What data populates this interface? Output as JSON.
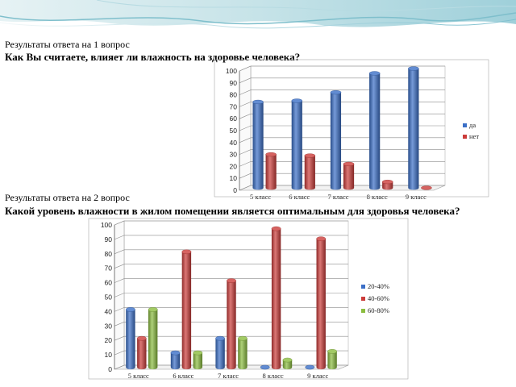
{
  "slide": {
    "q1_label": "Результаты ответа на 1 вопрос",
    "q1_question": "Как Вы считаете, влияет ли влажность на здоровье человека?",
    "q2_label": "Результаты ответа на 2 вопрос",
    "q2_question": "Какой уровень влажности в жилом помещении является оптимальным для здоровья человека?"
  },
  "chart_data": [
    {
      "type": "bar",
      "style": "3d-cylinder",
      "categories": [
        "5 класс",
        "6 класс",
        "7 класс",
        "8 класс",
        "9 класс"
      ],
      "series": [
        {
          "name": "да",
          "color": "#3b6fc7",
          "values": [
            72,
            73,
            80,
            96,
            100
          ]
        },
        {
          "name": "нет",
          "color": "#cc3c3a",
          "values": [
            28,
            27,
            20,
            5,
            0
          ]
        }
      ],
      "ylim": [
        0,
        100
      ],
      "yticks": [
        0,
        10,
        20,
        30,
        40,
        50,
        60,
        70,
        80,
        90,
        100
      ],
      "grid": true,
      "legend": "right"
    },
    {
      "type": "bar",
      "style": "3d-cylinder",
      "categories": [
        "5 класс",
        "6 класс",
        "7 класс",
        "8 класс",
        "9 класс"
      ],
      "series": [
        {
          "name": "20-40%",
          "color": "#3b6fc7",
          "values": [
            40,
            10,
            20,
            0,
            0
          ]
        },
        {
          "name": "40-60%",
          "color": "#cc3c3a",
          "values": [
            20,
            80,
            60,
            96,
            89
          ]
        },
        {
          "name": "60-80%",
          "color": "#8bbd3f",
          "values": [
            40,
            10,
            20,
            5,
            11
          ]
        }
      ],
      "ylim": [
        0,
        100
      ],
      "yticks": [
        0,
        10,
        20,
        30,
        40,
        50,
        60,
        70,
        80,
        90,
        100
      ],
      "grid": true,
      "legend": "right"
    }
  ]
}
